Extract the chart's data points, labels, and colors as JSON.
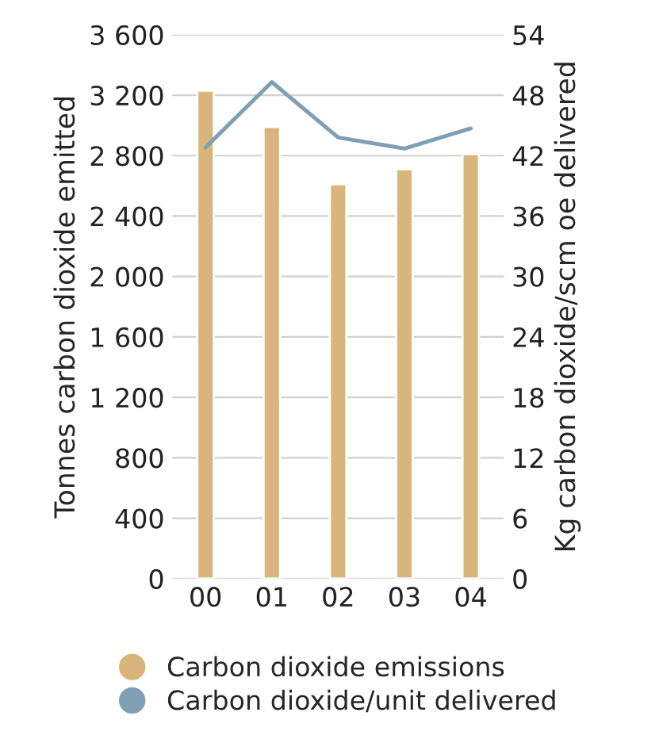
{
  "chart_data": {
    "type": "bar",
    "categories": [
      "00",
      "01",
      "02",
      "03",
      "04"
    ],
    "ylabel": "Tonnes carbon dioxide emitted",
    "y2label": "Kg carbon dioxide/scm oe delivered",
    "series": [
      {
        "name": "Carbon dioxide emissions",
        "color": "#d9b57c",
        "values": [
          3230,
          2990,
          2610,
          2710,
          2810
        ]
      },
      {
        "name": "Carbon dioxide/unit delivered",
        "type": "line",
        "axis": "y2",
        "color": "#7f9fb4",
        "values": [
          42.8,
          49.3,
          43.8,
          42.7,
          44.7
        ]
      }
    ],
    "ylim": [
      0,
      3600
    ],
    "yticks": [
      0,
      400,
      800,
      {
        "value": 1200,
        "label": "1 200"
      },
      {
        "value": 1600,
        "label": "1 600"
      },
      {
        "value": 2000,
        "label": "2 000"
      },
      {
        "value": 2400,
        "label": "2 400"
      },
      {
        "value": 2800,
        "label": "2 800"
      },
      {
        "value": 3200,
        "label": "3 200"
      },
      {
        "value": 3600,
        "label": "3 600"
      }
    ],
    "y2lim": [
      0,
      54
    ],
    "y2ticks": [
      0,
      6,
      12,
      18,
      24,
      30,
      36,
      42,
      48,
      54
    ],
    "grid": "y",
    "legend": "bottom",
    "marker": "none"
  }
}
